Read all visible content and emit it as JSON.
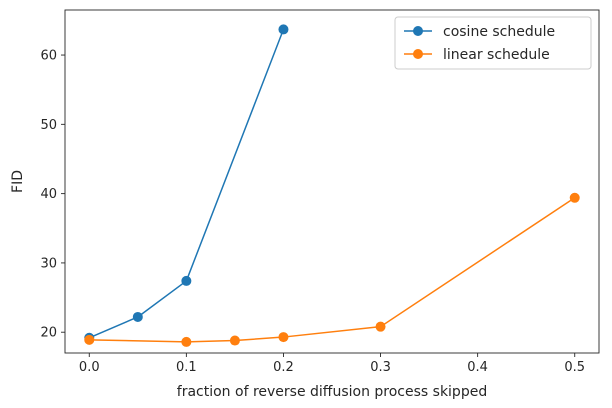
{
  "chart_data": {
    "type": "line",
    "title": "",
    "xlabel": "fraction of reverse diffusion process skipped",
    "ylabel": "FID",
    "xlim": [
      -0.025,
      0.525
    ],
    "ylim": [
      17.0,
      66.5
    ],
    "xticks": [
      0.0,
      0.1,
      0.2,
      0.3,
      0.4,
      0.5
    ],
    "xtick_labels": [
      "0.0",
      "0.1",
      "0.2",
      "0.3",
      "0.4",
      "0.5"
    ],
    "yticks": [
      20,
      30,
      40,
      50,
      60
    ],
    "ytick_labels": [
      "20",
      "30",
      "40",
      "50",
      "60"
    ],
    "grid": false,
    "legend_position": "top-right",
    "series": [
      {
        "name": "cosine schedule",
        "color": "#1f77b4",
        "x": [
          0.0,
          0.05,
          0.1,
          0.2
        ],
        "y": [
          19.2,
          22.2,
          27.4,
          63.7
        ]
      },
      {
        "name": "linear schedule",
        "color": "#ff7f0e",
        "x": [
          0.0,
          0.1,
          0.15,
          0.2,
          0.3,
          0.5
        ],
        "y": [
          18.9,
          18.6,
          18.8,
          19.3,
          20.8,
          39.4
        ]
      }
    ]
  }
}
